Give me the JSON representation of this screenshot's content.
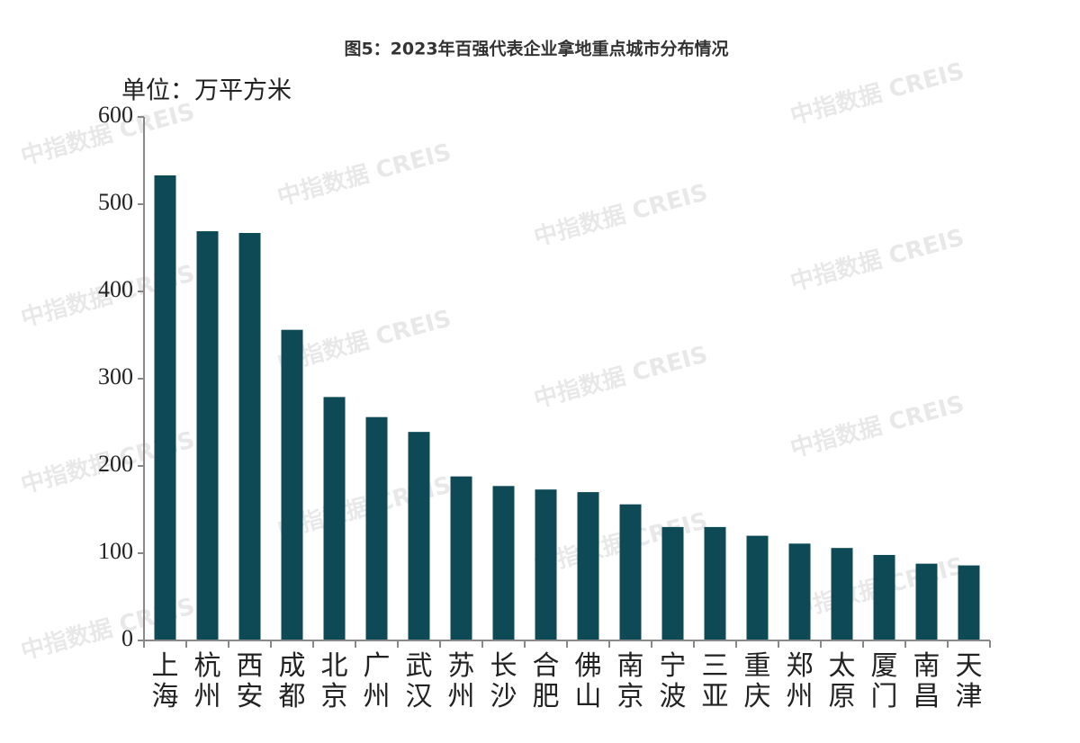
{
  "chart_data": {
    "type": "bar",
    "title": "图5：2023年百强代表企业拿地重点城市分布情况",
    "y_label": "单位：万平方米",
    "watermark": "中指数据 CREIS",
    "categories": [
      "上海",
      "杭州",
      "西安",
      "成都",
      "北京",
      "广州",
      "武汉",
      "苏州",
      "长沙",
      "合肥",
      "佛山",
      "南京",
      "宁波",
      "三亚",
      "重庆",
      "郑州",
      "太原",
      "厦门",
      "南昌",
      "天津"
    ],
    "values": [
      533,
      469,
      467,
      356,
      279,
      256,
      239,
      188,
      177,
      173,
      170,
      156,
      130,
      130,
      120,
      111,
      106,
      98,
      88,
      86
    ],
    "color": "#0d4a55",
    "ylim": [
      0,
      600
    ],
    "yticks": [
      0,
      100,
      200,
      300,
      400,
      500,
      600
    ],
    "grid": false
  }
}
